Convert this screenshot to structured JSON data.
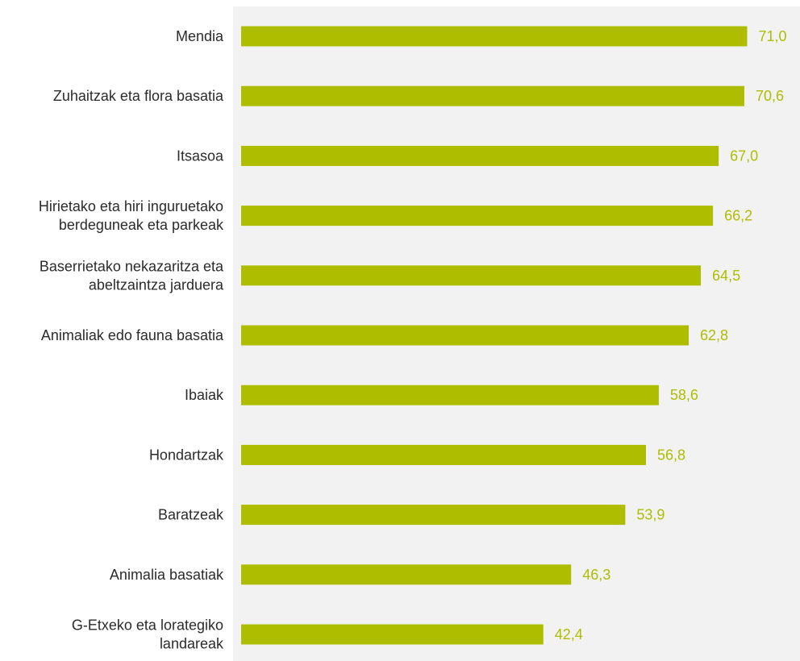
{
  "chart_data": {
    "type": "bar",
    "orientation": "horizontal",
    "categories": [
      [
        "Mendia"
      ],
      [
        "Zuhaitzak eta flora basatia"
      ],
      [
        "Itsasoa"
      ],
      [
        "Hirietako eta hiri inguruetako",
        "berdeguneak eta parkeak"
      ],
      [
        "Baserrietako nekazaritza eta",
        "abeltzaintza jarduera"
      ],
      [
        "Animaliak edo fauna basatia"
      ],
      [
        "Ibaiak"
      ],
      [
        "Hondartzak"
      ],
      [
        "Baratzeak"
      ],
      [
        "Animalia basatiak"
      ],
      [
        "G-Etxeko eta lorategiko",
        "landareak"
      ]
    ],
    "values": [
      71.0,
      70.6,
      67.0,
      66.2,
      64.5,
      62.8,
      58.6,
      56.8,
      53.9,
      46.3,
      42.4
    ],
    "value_labels": [
      "71,0",
      "70,6",
      "67,0",
      "66,2",
      "64,5",
      "62,8",
      "58,6",
      "56,8",
      "53,9",
      "46,3",
      "42,4"
    ],
    "xlim": [
      0,
      80
    ],
    "bar_color": "#aebd00",
    "label_color": "#aebd00",
    "plot_background": "#f2f2f2",
    "grid": false,
    "legend": false
  }
}
